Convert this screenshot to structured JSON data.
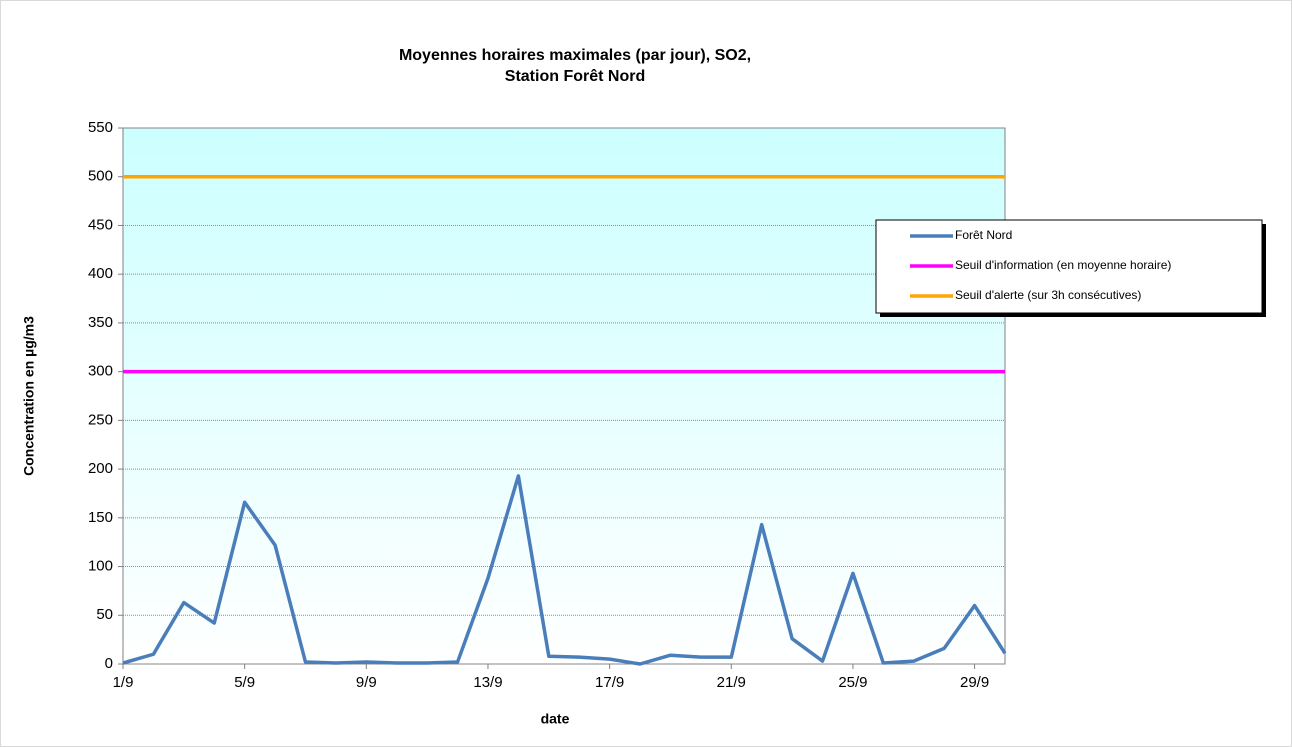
{
  "chart_data": {
    "type": "line",
    "title": [
      "Moyennes horaires maximales (par jour), SO2,",
      "Station Forêt Nord"
    ],
    "x_label": "date",
    "y_label": "Concentration en µg/m3",
    "categories": [
      "1/9",
      null,
      null,
      null,
      "5/9",
      null,
      null,
      null,
      "9/9",
      null,
      null,
      null,
      "13/9",
      null,
      null,
      null,
      "17/9",
      null,
      null,
      null,
      "21/9",
      null,
      null,
      null,
      "25/9",
      null,
      null,
      null,
      "29/9",
      null
    ],
    "series": [
      {
        "name": "Forêt Nord",
        "color": "#4a7ebb",
        "values": [
          1,
          10,
          63,
          42,
          166,
          122,
          2,
          1,
          2,
          1,
          1,
          2,
          88,
          193,
          8,
          7,
          5,
          0,
          9,
          7,
          7,
          143,
          26,
          3,
          93,
          1,
          3,
          16,
          60,
          11
        ]
      },
      {
        "name": "Seuil d'information (en moyenne horaire)",
        "color": "#ff00ff",
        "values": [
          300,
          300,
          300,
          300,
          300,
          300,
          300,
          300,
          300,
          300,
          300,
          300,
          300,
          300,
          300,
          300,
          300,
          300,
          300,
          300,
          300,
          300,
          300,
          300,
          300,
          300,
          300,
          300,
          300,
          300
        ]
      },
      {
        "name": "Seuil d'alerte (sur 3h consécutives)",
        "color": "#ffa500",
        "values": [
          500,
          500,
          500,
          500,
          500,
          500,
          500,
          500,
          500,
          500,
          500,
          500,
          500,
          500,
          500,
          500,
          500,
          500,
          500,
          500,
          500,
          500,
          500,
          500,
          500,
          500,
          500,
          500,
          500,
          500
        ]
      }
    ],
    "ylim": [
      0,
      550
    ],
    "yticks": [
      0,
      50,
      100,
      150,
      200,
      250,
      300,
      350,
      400,
      450,
      500,
      550
    ],
    "grid": true,
    "legend": "right"
  }
}
